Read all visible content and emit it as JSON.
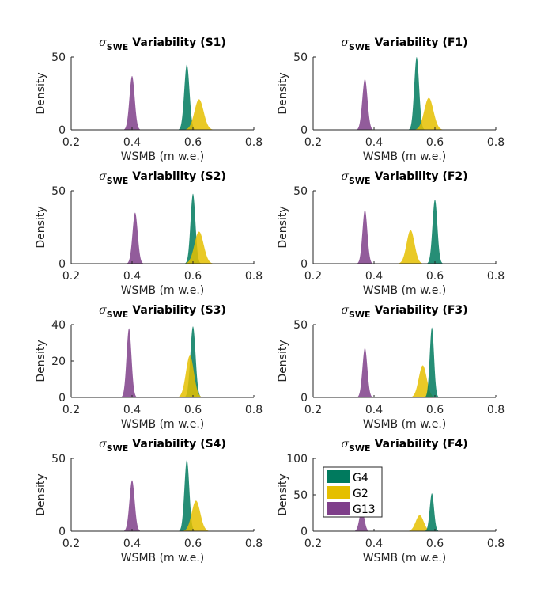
{
  "colors": {
    "G4": "#007a5e",
    "G2": "#e5bf00",
    "G13": "#7f3f8a"
  },
  "title_parts": {
    "symbol": "σ",
    "subscript": "SWE",
    "word": "Variability"
  },
  "chart_data": [
    {
      "type": "area",
      "panel": "S1",
      "title_tag": "(S1)",
      "xlabel": "WSMB (m w.e.)",
      "ylabel": "Density",
      "xlim": [
        0.2,
        0.8
      ],
      "ylim": [
        0,
        50
      ],
      "xticks": [
        "0.2",
        "0.4",
        "0.6",
        "0.8"
      ],
      "yticks": [
        "0",
        "50"
      ],
      "series": [
        {
          "key": "G13",
          "mean": 0.4,
          "sd": 0.0085,
          "peak": 37
        },
        {
          "key": "G4",
          "mean": 0.58,
          "sd": 0.0085,
          "peak": 45
        },
        {
          "key": "G2",
          "mean": 0.62,
          "sd": 0.015,
          "peak": 21
        }
      ]
    },
    {
      "type": "area",
      "panel": "F1",
      "title_tag": "(F1)",
      "xlabel": "WSMB (m w.e.)",
      "ylabel": "Density",
      "xlim": [
        0.2,
        0.8
      ],
      "ylim": [
        0,
        50
      ],
      "xticks": [
        "0.2",
        "0.4",
        "0.6",
        "0.8"
      ],
      "yticks": [
        "0",
        "50"
      ],
      "series": [
        {
          "key": "G13",
          "mean": 0.37,
          "sd": 0.0085,
          "peak": 35
        },
        {
          "key": "G4",
          "mean": 0.54,
          "sd": 0.008,
          "peak": 50
        },
        {
          "key": "G2",
          "mean": 0.58,
          "sd": 0.015,
          "peak": 22
        }
      ]
    },
    {
      "type": "area",
      "panel": "S2",
      "title_tag": "(S2)",
      "xlabel": "WSMB (m w.e.)",
      "ylabel": "Density",
      "xlim": [
        0.2,
        0.8
      ],
      "ylim": [
        0,
        50
      ],
      "xticks": [
        "0.2",
        "0.4",
        "0.6",
        "0.8"
      ],
      "yticks": [
        "0",
        "50"
      ],
      "series": [
        {
          "key": "G13",
          "mean": 0.41,
          "sd": 0.0085,
          "peak": 35
        },
        {
          "key": "G4",
          "mean": 0.6,
          "sd": 0.008,
          "peak": 48
        },
        {
          "key": "G2",
          "mean": 0.62,
          "sd": 0.015,
          "peak": 22
        }
      ]
    },
    {
      "type": "area",
      "panel": "F2",
      "title_tag": "(F2)",
      "xlabel": "WSMB (m w.e.)",
      "ylabel": "Density",
      "xlim": [
        0.2,
        0.8
      ],
      "ylim": [
        0,
        50
      ],
      "xticks": [
        "0.2",
        "0.4",
        "0.6",
        "0.8"
      ],
      "yticks": [
        "0",
        "50"
      ],
      "series": [
        {
          "key": "G13",
          "mean": 0.37,
          "sd": 0.008,
          "peak": 37
        },
        {
          "key": "G2",
          "mean": 0.52,
          "sd": 0.013,
          "peak": 23
        },
        {
          "key": "G4",
          "mean": 0.6,
          "sd": 0.008,
          "peak": 44
        }
      ]
    },
    {
      "type": "area",
      "panel": "S3",
      "title_tag": "(S3)",
      "xlabel": "WSMB (m w.e.)",
      "ylabel": "Density",
      "xlim": [
        0.2,
        0.8
      ],
      "ylim": [
        0,
        40
      ],
      "xticks": [
        "0.2",
        "0.4",
        "0.6",
        "0.8"
      ],
      "yticks": [
        "0",
        "20",
        "40"
      ],
      "series": [
        {
          "key": "G13",
          "mean": 0.39,
          "sd": 0.008,
          "peak": 38
        },
        {
          "key": "G4",
          "mean": 0.6,
          "sd": 0.0085,
          "peak": 39
        },
        {
          "key": "G2",
          "mean": 0.59,
          "sd": 0.013,
          "peak": 23
        }
      ]
    },
    {
      "type": "area",
      "panel": "F3",
      "title_tag": "(F3)",
      "xlabel": "WSMB (m w.e.)",
      "ylabel": "Density",
      "xlim": [
        0.2,
        0.8
      ],
      "ylim": [
        0,
        50
      ],
      "xticks": [
        "0.2",
        "0.4",
        "0.6",
        "0.8"
      ],
      "yticks": [
        "0",
        "50"
      ],
      "series": [
        {
          "key": "G13",
          "mean": 0.37,
          "sd": 0.008,
          "peak": 34
        },
        {
          "key": "G2",
          "mean": 0.56,
          "sd": 0.013,
          "peak": 22
        },
        {
          "key": "G4",
          "mean": 0.59,
          "sd": 0.007,
          "peak": 48
        }
      ]
    },
    {
      "type": "area",
      "panel": "S4",
      "title_tag": "(S4)",
      "xlabel": "WSMB (m w.e.)",
      "ylabel": "Density",
      "xlim": [
        0.2,
        0.8
      ],
      "ylim": [
        0,
        50
      ],
      "xticks": [
        "0.2",
        "0.4",
        "0.6",
        "0.8"
      ],
      "yticks": [
        "0",
        "50"
      ],
      "series": [
        {
          "key": "G13",
          "mean": 0.4,
          "sd": 0.0085,
          "peak": 35
        },
        {
          "key": "G4",
          "mean": 0.58,
          "sd": 0.008,
          "peak": 49
        },
        {
          "key": "G2",
          "mean": 0.61,
          "sd": 0.014,
          "peak": 21
        }
      ]
    },
    {
      "type": "area",
      "panel": "F4",
      "title_tag": "(F4)",
      "xlabel": "WSMB (m w.e.)",
      "ylabel": "Density",
      "xlim": [
        0.2,
        0.8
      ],
      "ylim": [
        0,
        100
      ],
      "xticks": [
        "0.2",
        "0.4",
        "0.6",
        "0.8"
      ],
      "yticks": [
        "0",
        "50",
        "100"
      ],
      "series": [
        {
          "key": "G13",
          "mean": 0.36,
          "sd": 0.008,
          "peak": 30
        },
        {
          "key": "G2",
          "mean": 0.55,
          "sd": 0.013,
          "peak": 22
        },
        {
          "key": "G4",
          "mean": 0.59,
          "sd": 0.007,
          "peak": 52
        }
      ],
      "legend": {
        "placement": "top-left",
        "entries": [
          "G4",
          "G2",
          "G13"
        ]
      }
    }
  ]
}
